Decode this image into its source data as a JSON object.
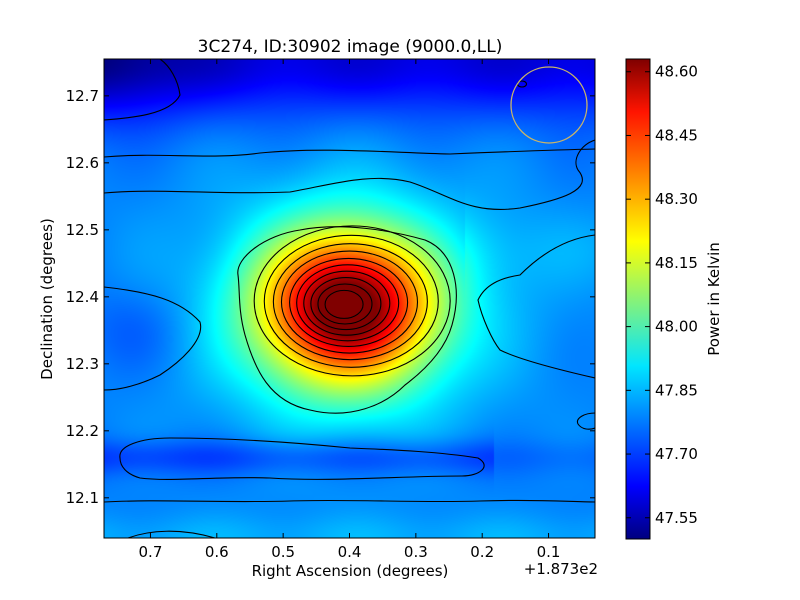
{
  "chart_data": {
    "type": "heatmap",
    "title": "3C274, ID:30902 image (9000.0,LL)",
    "xlabel": "Right Ascension (degrees)",
    "ylabel": "Declination (degrees)",
    "x_offset_label": "+1.873e2",
    "x_ticks": [
      "0.7",
      "0.6",
      "0.5",
      "0.4",
      "0.3",
      "0.2",
      "0.1"
    ],
    "x_tick_values": [
      0.7,
      0.6,
      0.5,
      0.4,
      0.3,
      0.2,
      0.1
    ],
    "xlim": [
      0.77,
      0.03
    ],
    "y_ticks": [
      "12.1",
      "12.2",
      "12.3",
      "12.4",
      "12.5",
      "12.6",
      "12.7"
    ],
    "y_tick_values": [
      12.1,
      12.2,
      12.3,
      12.4,
      12.5,
      12.6,
      12.7
    ],
    "ylim": [
      12.04,
      12.755
    ],
    "colorbar_label": "Power in Kelvin",
    "colorbar_ticks": [
      "47.55",
      "47.70",
      "47.85",
      "48.00",
      "48.15",
      "48.30",
      "48.45",
      "48.60"
    ],
    "colorbar_tick_values": [
      47.55,
      47.7,
      47.85,
      48.0,
      48.15,
      48.3,
      48.45,
      48.6
    ],
    "colorbar_range": [
      47.5,
      48.63
    ],
    "colormap": "jet",
    "peak": {
      "ra": 0.405,
      "dec": 12.385,
      "value": 48.62
    },
    "beam_circle": {
      "ra": 0.1,
      "dec": 12.685,
      "color": "#c8b46a"
    },
    "contour_color": "#000000"
  }
}
